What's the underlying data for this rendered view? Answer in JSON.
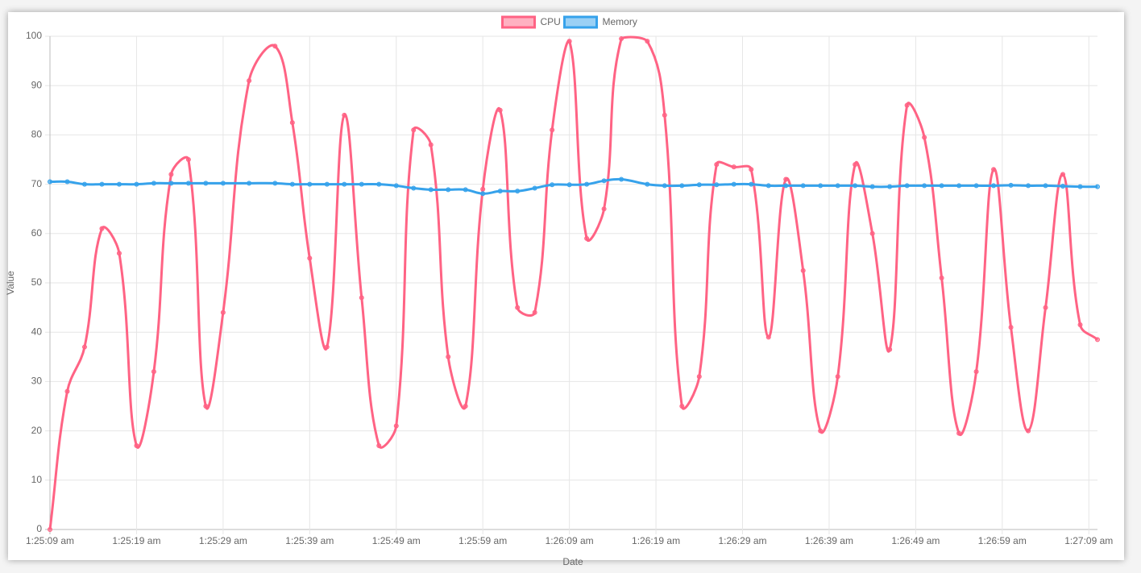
{
  "chart_data": {
    "type": "line",
    "x_label": "Date",
    "y_label": "Value",
    "x": [
      "1:25:09 am",
      "1:25:11 am",
      "1:25:13 am",
      "1:25:15 am",
      "1:25:17 am",
      "1:25:19 am",
      "1:25:21 am",
      "1:25:23 am",
      "1:25:25 am",
      "1:25:27 am",
      "1:25:29 am",
      "1:25:32 am",
      "1:25:35 am",
      "1:25:37 am",
      "1:25:39 am",
      "1:25:41 am",
      "1:25:43 am",
      "1:25:45 am",
      "1:25:47 am",
      "1:25:49 am",
      "1:25:51 am",
      "1:25:53 am",
      "1:25:55 am",
      "1:25:57 am",
      "1:25:59 am",
      "1:26:01 am",
      "1:26:03 am",
      "1:26:05 am",
      "1:26:07 am",
      "1:26:09 am",
      "1:26:11 am",
      "1:26:13 am",
      "1:26:15 am",
      "1:26:18 am",
      "1:26:20 am",
      "1:26:22 am",
      "1:26:24 am",
      "1:26:26 am",
      "1:26:28 am",
      "1:26:30 am",
      "1:26:32 am",
      "1:26:34 am",
      "1:26:36 am",
      "1:26:38 am",
      "1:26:40 am",
      "1:26:42 am",
      "1:26:44 am",
      "1:26:46 am",
      "1:26:48 am",
      "1:26:50 am",
      "1:26:52 am",
      "1:26:54 am",
      "1:26:56 am",
      "1:26:58 am",
      "1:27:00 am",
      "1:27:02 am",
      "1:27:04 am",
      "1:27:06 am",
      "1:27:08 am",
      "1:27:10 am"
    ],
    "series": [
      {
        "name": "CPU",
        "color": "#ff6384",
        "values": [
          0,
          28,
          37,
          61,
          56,
          17,
          32,
          72,
          75,
          25,
          44,
          91,
          98,
          82.5,
          55,
          37,
          84,
          47,
          17,
          21,
          81,
          78,
          35,
          25,
          69,
          85,
          45,
          44,
          81,
          99,
          59,
          65,
          99.5,
          99,
          84,
          25,
          31,
          74,
          73.5,
          73,
          39,
          71,
          52.5,
          20,
          31,
          74,
          60,
          36.5,
          86,
          79.5,
          51,
          19.5,
          32,
          73,
          41,
          20,
          45,
          72,
          41.5,
          38.5
        ]
      },
      {
        "name": "Memory",
        "color": "#36a2eb",
        "values": [
          70.5,
          70.5,
          70,
          70,
          70,
          70,
          70.2,
          70.2,
          70.2,
          70.2,
          70.2,
          70.2,
          70.2,
          70,
          70,
          70,
          70,
          70,
          70,
          69.7,
          69.2,
          68.9,
          68.9,
          68.9,
          68.1,
          68.6,
          68.6,
          69.2,
          69.9,
          69.9,
          70,
          70.7,
          71,
          70,
          69.7,
          69.7,
          69.9,
          69.9,
          70,
          70,
          69.7,
          69.7,
          69.7,
          69.7,
          69.7,
          69.7,
          69.5,
          69.5,
          69.7,
          69.7,
          69.7,
          69.7,
          69.7,
          69.7,
          69.8,
          69.7,
          69.7,
          69.6,
          69.5,
          69.5
        ]
      }
    ],
    "xlim": [
      "1:25:09 am",
      "1:27:10 am"
    ],
    "xticks": [
      "1:25:09 am",
      "1:25:19 am",
      "1:25:29 am",
      "1:25:39 am",
      "1:25:49 am",
      "1:25:59 am",
      "1:26:09 am",
      "1:26:19 am",
      "1:26:29 am",
      "1:26:39 am",
      "1:26:49 am",
      "1:26:59 am",
      "1:27:09 am"
    ],
    "ylim": [
      0,
      100
    ],
    "yticks": [
      0,
      10,
      20,
      30,
      40,
      50,
      60,
      70,
      80,
      90,
      100
    ],
    "grid": true,
    "legend": "top"
  }
}
